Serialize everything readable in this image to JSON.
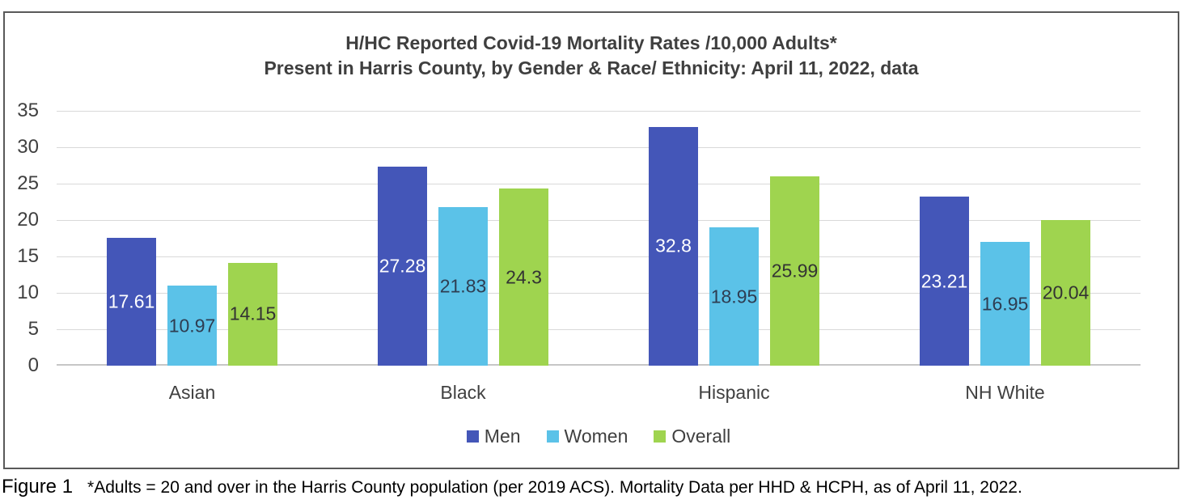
{
  "chart": {
    "title_line1": "H/HC Reported Covid-19 Mortality Rates /10,000 Adults*",
    "title_line2": "Present in Harris County, by Gender & Race/ Ethnicity: April 11, 2022, data"
  },
  "chart_data": {
    "type": "bar",
    "categories": [
      "Asian",
      "Black",
      "Hispanic",
      "NH White"
    ],
    "series": [
      {
        "name": "Men",
        "color": "#4456B8",
        "label_color": "#ffffff",
        "values": [
          17.61,
          27.28,
          32.8,
          23.21
        ]
      },
      {
        "name": "Women",
        "color": "#5BC2E8",
        "label_color": "#2e3d52",
        "values": [
          10.97,
          21.83,
          18.95,
          16.95
        ]
      },
      {
        "name": "Overall",
        "color": "#9FD44F",
        "label_color": "#333333",
        "values": [
          14.15,
          24.3,
          25.99,
          20.04
        ]
      }
    ],
    "ylim": [
      0,
      35
    ],
    "ytick_step": 5,
    "grid": true,
    "legend_position": "bottom",
    "data_labels": "center",
    "gridline_color": "#d9d9d9",
    "axis_text_color": "#404040"
  },
  "caption": {
    "figure_label": "Figure 1",
    "text": "*Adults = 20 and over in the Harris County population (per 2019 ACS). Mortality Data per HHD & HCPH, as of April 11, 2022."
  }
}
